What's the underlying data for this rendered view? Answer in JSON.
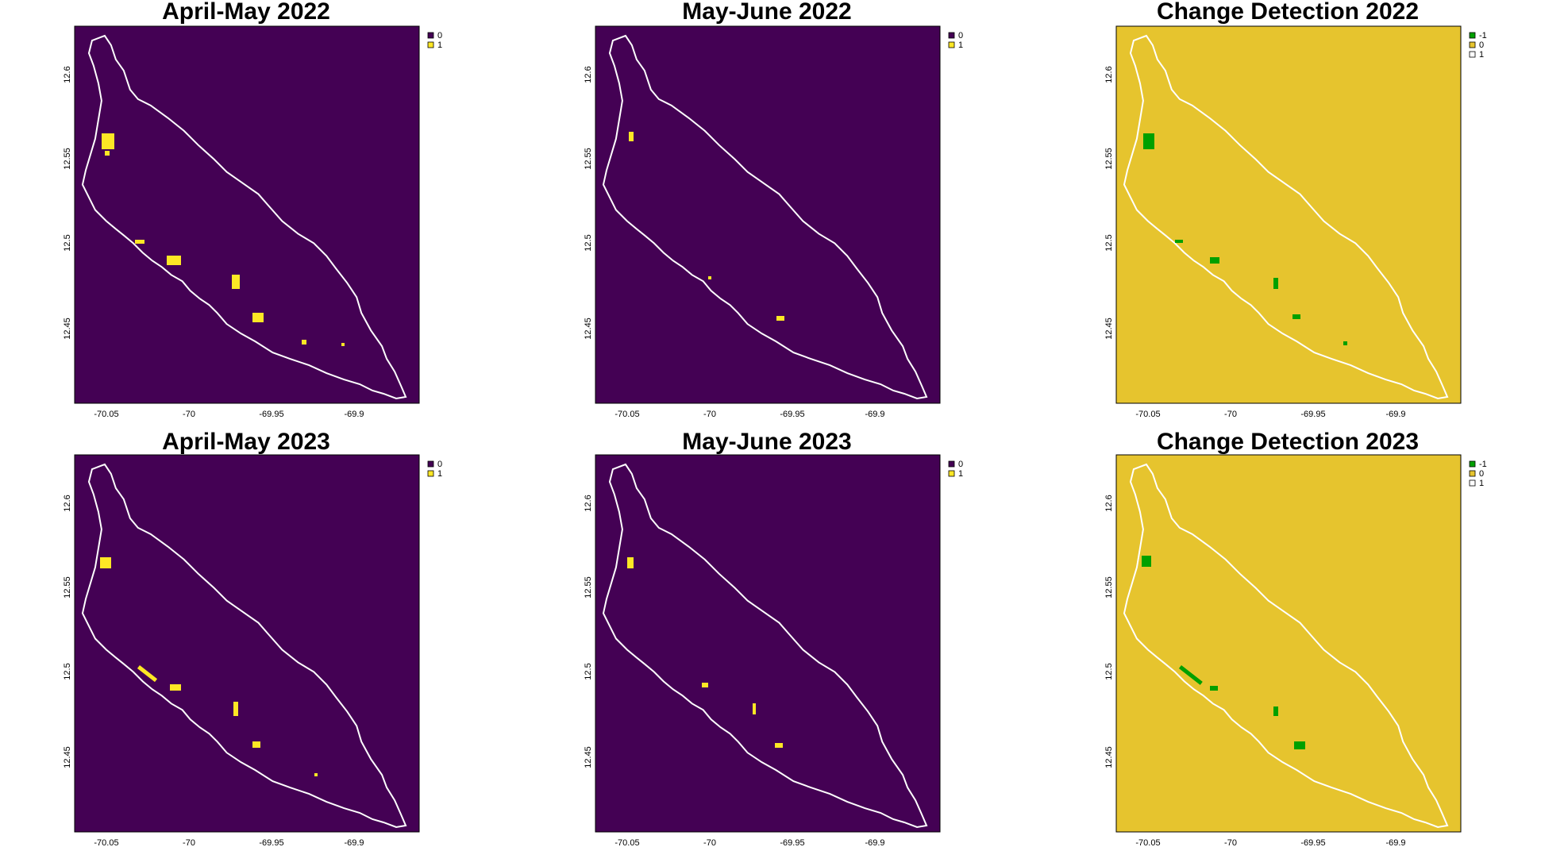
{
  "colors": {
    "viridis_0": "#440154",
    "viridis_1": "#fde725",
    "change_neg1": "#00a000",
    "change_0": "#e6c42e",
    "change_1": "#ffffff",
    "outline": "#ffffff"
  },
  "axes": {
    "x_ticks": [
      "-70.05",
      "-70",
      "-69.95",
      "-69.9"
    ],
    "y_ticks": [
      "12.6",
      "12.55",
      "12.5",
      "12.45"
    ]
  },
  "panels": [
    {
      "title": "April-May 2022",
      "kind": "binary",
      "legend": [
        "0",
        "1"
      ]
    },
    {
      "title": "May-June 2022",
      "kind": "binary",
      "legend": [
        "0",
        "1"
      ]
    },
    {
      "title": "Change Detection 2022",
      "kind": "change",
      "legend": [
        "-1",
        "0",
        "1"
      ]
    },
    {
      "title": "April-May 2023",
      "kind": "binary",
      "legend": [
        "0",
        "1"
      ]
    },
    {
      "title": "May-June 2023",
      "kind": "binary",
      "legend": [
        "0",
        "1"
      ]
    },
    {
      "title": "Change Detection 2023",
      "kind": "change",
      "legend": [
        "-1",
        "0",
        "1"
      ]
    }
  ]
}
